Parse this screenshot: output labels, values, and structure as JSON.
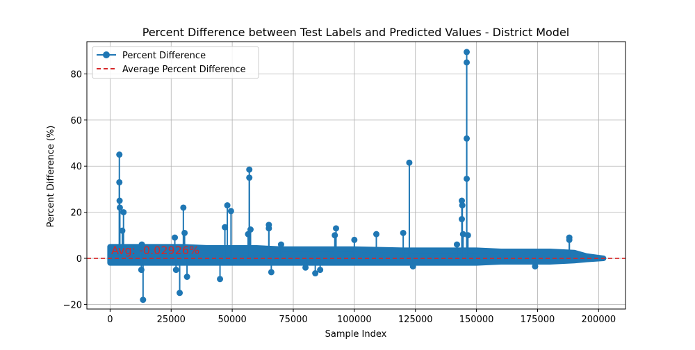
{
  "chart_data": {
    "type": "line",
    "title": "Percent Difference between Test Labels and Predicted Values - District Model",
    "xlabel": "Sample Index",
    "ylabel": "Percent Difference (%)",
    "xlim": [
      -9500,
      211000
    ],
    "ylim": [
      -22,
      94
    ],
    "xticks": [
      0,
      25000,
      50000,
      75000,
      100000,
      125000,
      150000,
      175000,
      200000
    ],
    "yticks": [
      -20,
      0,
      20,
      40,
      60,
      80
    ],
    "xtick_labels": [
      "0",
      "25000",
      "50000",
      "75000",
      "100000",
      "125000",
      "150000",
      "175000",
      "200000"
    ],
    "ytick_labels": [
      "−20",
      "0",
      "20",
      "40",
      "60",
      "80"
    ],
    "grid": true,
    "legend_position": "upper-left",
    "average": -0.02926,
    "average_label": "Avg: -0.02926%",
    "series": [
      {
        "name": "Percent Difference",
        "color": "#1f77b4",
        "style": "solid line with circle markers",
        "spikes": [
          {
            "x": 3800,
            "y": 45
          },
          {
            "x": 3800,
            "y": 33
          },
          {
            "x": 3900,
            "y": 25
          },
          {
            "x": 4000,
            "y": 22
          },
          {
            "x": 5500,
            "y": 20
          },
          {
            "x": 5000,
            "y": 12
          },
          {
            "x": 13000,
            "y": 6
          },
          {
            "x": 12800,
            "y": -5
          },
          {
            "x": 13500,
            "y": -18
          },
          {
            "x": 26500,
            "y": 9
          },
          {
            "x": 27000,
            "y": -5
          },
          {
            "x": 28500,
            "y": -15
          },
          {
            "x": 30000,
            "y": 22
          },
          {
            "x": 30500,
            "y": 11
          },
          {
            "x": 31500,
            "y": -8
          },
          {
            "x": 45000,
            "y": -9
          },
          {
            "x": 47000,
            "y": 13.5
          },
          {
            "x": 48000,
            "y": 23
          },
          {
            "x": 49500,
            "y": 20.5
          },
          {
            "x": 56500,
            "y": 10.5
          },
          {
            "x": 57000,
            "y": 38.5
          },
          {
            "x": 57000,
            "y": 35
          },
          {
            "x": 57500,
            "y": 12.5
          },
          {
            "x": 65000,
            "y": 14.5
          },
          {
            "x": 65000,
            "y": 13
          },
          {
            "x": 66000,
            "y": -6
          },
          {
            "x": 70000,
            "y": 6
          },
          {
            "x": 80000,
            "y": -4
          },
          {
            "x": 84000,
            "y": -6.5
          },
          {
            "x": 86000,
            "y": -5
          },
          {
            "x": 92000,
            "y": 10
          },
          {
            "x": 92500,
            "y": 13
          },
          {
            "x": 100000,
            "y": 8
          },
          {
            "x": 109000,
            "y": 10.5
          },
          {
            "x": 120000,
            "y": 11
          },
          {
            "x": 122500,
            "y": 41.5
          },
          {
            "x": 124000,
            "y": -3.5
          },
          {
            "x": 142000,
            "y": 6
          },
          {
            "x": 144000,
            "y": 25
          },
          {
            "x": 144200,
            "y": 23
          },
          {
            "x": 144000,
            "y": 17
          },
          {
            "x": 144500,
            "y": 10.5
          },
          {
            "x": 146000,
            "y": 89.5
          },
          {
            "x": 146000,
            "y": 85
          },
          {
            "x": 146000,
            "y": 52
          },
          {
            "x": 146000,
            "y": 34.5
          },
          {
            "x": 146500,
            "y": 10
          },
          {
            "x": 174000,
            "y": -3.5
          },
          {
            "x": 188000,
            "y": 9
          },
          {
            "x": 188000,
            "y": 8
          }
        ],
        "dense_band": [
          {
            "x": 0,
            "lo": -2.0,
            "hi": 5.0
          },
          {
            "x": 5000,
            "lo": -2.0,
            "hi": 5.0
          },
          {
            "x": 10000,
            "lo": -2.0,
            "hi": 5.0
          },
          {
            "x": 20000,
            "lo": -2.0,
            "hi": 5.0
          },
          {
            "x": 30000,
            "lo": -2.0,
            "hi": 5.0
          },
          {
            "x": 40000,
            "lo": -2.0,
            "hi": 4.5
          },
          {
            "x": 50000,
            "lo": -2.0,
            "hi": 4.5
          },
          {
            "x": 60000,
            "lo": -2.0,
            "hi": 4.5
          },
          {
            "x": 70000,
            "lo": -2.0,
            "hi": 4.0
          },
          {
            "x": 80000,
            "lo": -2.0,
            "hi": 4.0
          },
          {
            "x": 100000,
            "lo": -2.0,
            "hi": 4.0
          },
          {
            "x": 120000,
            "lo": -2.0,
            "hi": 3.5
          },
          {
            "x": 140000,
            "lo": -2.0,
            "hi": 3.5
          },
          {
            "x": 150000,
            "lo": -2.0,
            "hi": 3.5
          },
          {
            "x": 160000,
            "lo": -1.5,
            "hi": 3.0
          },
          {
            "x": 170000,
            "lo": -1.5,
            "hi": 3.0
          },
          {
            "x": 180000,
            "lo": -1.5,
            "hi": 3.0
          },
          {
            "x": 190000,
            "lo": -1.0,
            "hi": 2.5
          },
          {
            "x": 195000,
            "lo": -0.5,
            "hi": 1.0
          },
          {
            "x": 202000,
            "lo": 0.0,
            "hi": 0.0
          }
        ]
      },
      {
        "name": "Average Percent Difference",
        "color": "#d62728",
        "style": "dashed horizontal line",
        "y": -0.02926
      }
    ]
  }
}
